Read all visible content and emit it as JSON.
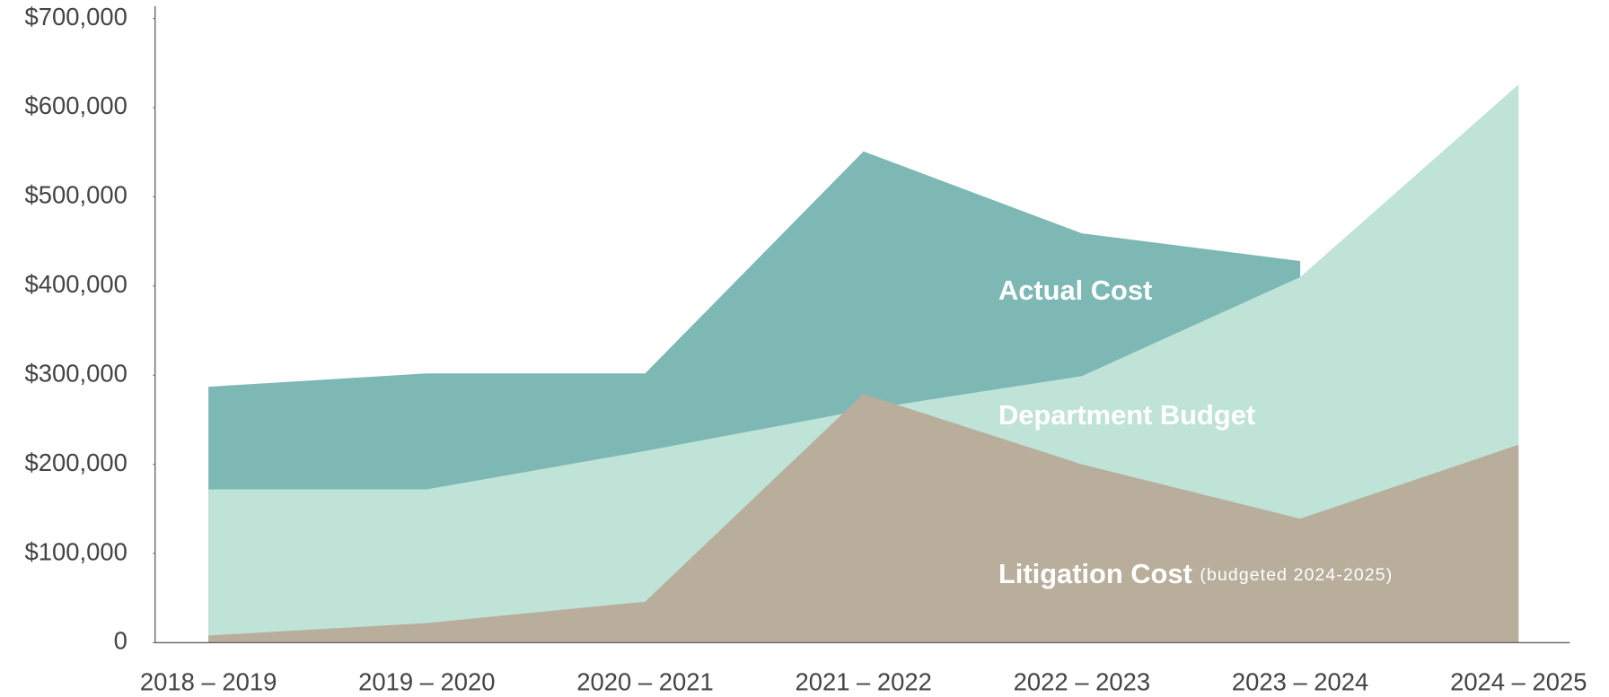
{
  "chart_data": {
    "type": "area",
    "categories": [
      "2018 – 2019",
      "2019 – 2020",
      "2020 – 2021",
      "2021 – 2022",
      "2022 – 2023",
      "2023 – 2024",
      "2024 – 2025"
    ],
    "series": [
      {
        "name": "Actual Cost",
        "color": "#7db8b5",
        "values": [
          287000,
          302000,
          302000,
          551000,
          459000,
          428000,
          null
        ]
      },
      {
        "name": "Department Budget",
        "color": "#bfe3d7",
        "values": [
          172000,
          172000,
          215000,
          261000,
          299000,
          410000,
          626000
        ]
      },
      {
        "name": "Litigation Cost",
        "color": "#b8ae9b",
        "values": [
          8000,
          22000,
          46000,
          279000,
          200000,
          139000,
          222000
        ]
      }
    ],
    "annotations": [
      "(budgeted 2024-2025)"
    ],
    "ylim": [
      0,
      700000
    ],
    "yticks": [
      0,
      {
        "value": 100000,
        "label": "$100,000"
      },
      {
        "value": 200000,
        "label": "$200,000"
      },
      {
        "value": 300000,
        "label": "$300,000"
      },
      {
        "value": 400000,
        "label": "$400,000"
      },
      {
        "value": 500000,
        "label": "$500,000"
      },
      {
        "value": 600000,
        "label": "$600,000"
      },
      {
        "value": 700000,
        "label": "$700,000"
      }
    ]
  }
}
